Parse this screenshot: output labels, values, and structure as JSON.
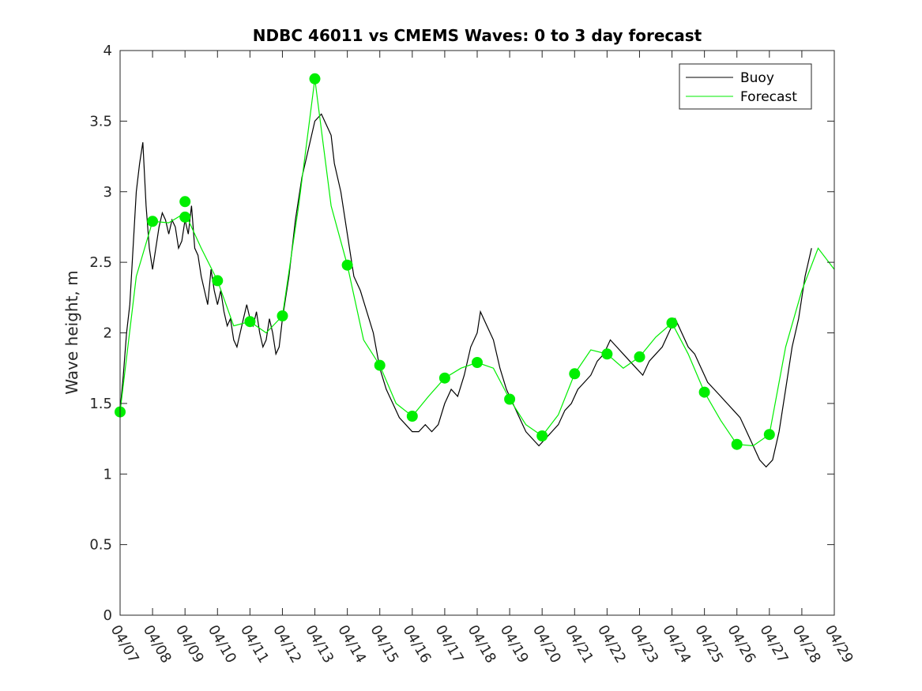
{
  "chart_data": {
    "type": "line",
    "title": "NDBC 46011 vs CMEMS Waves: 0 to 3 day forecast",
    "xlabel": "",
    "ylabel": "Wave height, m",
    "ylim": [
      0,
      4
    ],
    "yticks": [
      "0",
      "0.5",
      "1",
      "1.5",
      "2",
      "2.5",
      "3",
      "3.5",
      "4"
    ],
    "xlim": [
      0,
      22
    ],
    "xticks": [
      "04/07",
      "04/08",
      "04/09",
      "04/10",
      "04/11",
      "04/12",
      "04/13",
      "04/14",
      "04/15",
      "04/16",
      "04/17",
      "04/18",
      "04/19",
      "04/20",
      "04/21",
      "04/22",
      "04/23",
      "04/24",
      "04/25",
      "04/26",
      "04/27",
      "04/28",
      "04/29"
    ],
    "grid": false,
    "legend_position": "top-right",
    "colors": {
      "buoy": "#000000",
      "forecast": "#00ee00"
    },
    "series": [
      {
        "name": "Buoy",
        "x": [
          0,
          0.1,
          0.2,
          0.3,
          0.4,
          0.5,
          0.6,
          0.7,
          0.8,
          0.9,
          1.0,
          1.1,
          1.2,
          1.3,
          1.4,
          1.5,
          1.6,
          1.7,
          1.8,
          1.9,
          2.0,
          2.1,
          2.2,
          2.3,
          2.4,
          2.5,
          2.6,
          2.7,
          2.8,
          2.9,
          3.0,
          3.1,
          3.2,
          3.3,
          3.4,
          3.5,
          3.6,
          3.7,
          3.8,
          3.9,
          4.0,
          4.1,
          4.2,
          4.3,
          4.4,
          4.5,
          4.6,
          4.7,
          4.8,
          4.9,
          5.0,
          5.2,
          5.4,
          5.6,
          5.8,
          6.0,
          6.2,
          6.4,
          6.5,
          6.6,
          6.8,
          7.0,
          7.2,
          7.4,
          7.6,
          7.8,
          8.0,
          8.2,
          8.4,
          8.6,
          8.8,
          9.0,
          9.2,
          9.4,
          9.6,
          9.8,
          10.0,
          10.2,
          10.4,
          10.6,
          10.8,
          11.0,
          11.1,
          11.3,
          11.5,
          11.7,
          11.9,
          12.1,
          12.3,
          12.5,
          12.7,
          12.9,
          13.1,
          13.3,
          13.5,
          13.7,
          13.9,
          14.1,
          14.3,
          14.5,
          14.7,
          14.9,
          15.1,
          15.3,
          15.5,
          15.7,
          15.9,
          16.1,
          16.3,
          16.5,
          16.7,
          16.9,
          17.1,
          17.3,
          17.5,
          17.7,
          17.9,
          18.1,
          18.3,
          18.5,
          18.7,
          18.9,
          19.1,
          19.3,
          19.5,
          19.7,
          19.9,
          20.1,
          20.3,
          20.5,
          20.7,
          20.9,
          21.1,
          21.3
        ],
        "y": [
          1.45,
          1.7,
          2.0,
          2.2,
          2.6,
          3.0,
          3.2,
          3.35,
          2.9,
          2.6,
          2.45,
          2.6,
          2.75,
          2.85,
          2.8,
          2.7,
          2.8,
          2.75,
          2.6,
          2.65,
          2.8,
          2.7,
          2.9,
          2.6,
          2.55,
          2.4,
          2.3,
          2.2,
          2.45,
          2.3,
          2.2,
          2.3,
          2.15,
          2.05,
          2.1,
          1.95,
          1.9,
          2.0,
          2.1,
          2.2,
          2.1,
          2.05,
          2.15,
          2.0,
          1.9,
          1.95,
          2.1,
          2.0,
          1.85,
          1.9,
          2.1,
          2.4,
          2.8,
          3.1,
          3.3,
          3.5,
          3.55,
          3.45,
          3.4,
          3.2,
          3.0,
          2.7,
          2.4,
          2.3,
          2.15,
          2.0,
          1.75,
          1.6,
          1.5,
          1.4,
          1.35,
          1.3,
          1.3,
          1.35,
          1.3,
          1.35,
          1.5,
          1.6,
          1.55,
          1.7,
          1.9,
          2.0,
          2.15,
          2.05,
          1.95,
          1.75,
          1.6,
          1.5,
          1.4,
          1.3,
          1.25,
          1.2,
          1.25,
          1.3,
          1.35,
          1.45,
          1.5,
          1.6,
          1.65,
          1.7,
          1.8,
          1.85,
          1.95,
          1.9,
          1.85,
          1.8,
          1.75,
          1.7,
          1.8,
          1.85,
          1.9,
          2.0,
          2.1,
          2.0,
          1.9,
          1.85,
          1.75,
          1.65,
          1.6,
          1.55,
          1.5,
          1.45,
          1.4,
          1.3,
          1.2,
          1.1,
          1.05,
          1.1,
          1.3,
          1.6,
          1.9,
          2.1,
          2.4,
          2.6
        ]
      },
      {
        "name": "Forecast",
        "x": [
          0,
          0.5,
          1.0,
          1.5,
          2.0,
          2.5,
          3.0,
          3.5,
          4.0,
          4.5,
          5.0,
          5.5,
          6.0,
          6.5,
          7.0,
          7.5,
          8.0,
          8.5,
          9.0,
          9.5,
          10.0,
          10.5,
          11.0,
          11.5,
          12.0,
          12.5,
          13.0,
          13.5,
          14.0,
          14.5,
          15.0,
          15.5,
          16.0,
          16.5,
          17.0,
          17.5,
          18.0,
          18.5,
          19.0,
          19.5,
          20.0,
          20.5,
          21.0,
          21.5,
          22.0
        ],
        "y": [
          1.44,
          2.4,
          2.79,
          2.78,
          2.85,
          2.6,
          2.37,
          2.05,
          2.08,
          2.0,
          2.12,
          2.9,
          3.8,
          2.9,
          2.48,
          1.95,
          1.77,
          1.5,
          1.41,
          1.55,
          1.68,
          1.75,
          1.79,
          1.75,
          1.53,
          1.35,
          1.27,
          1.42,
          1.71,
          1.88,
          1.85,
          1.75,
          1.83,
          1.97,
          2.07,
          1.85,
          1.58,
          1.38,
          1.21,
          1.2,
          1.28,
          1.9,
          2.3,
          2.6,
          2.45
        ]
      }
    ],
    "markers": {
      "x": [
        0,
        1,
        2,
        2,
        3,
        4,
        5,
        6,
        7,
        8,
        9,
        10,
        11,
        12,
        13,
        14,
        15,
        16,
        17,
        18,
        19,
        20
      ],
      "y": [
        1.44,
        2.79,
        2.93,
        2.82,
        2.37,
        2.08,
        2.12,
        3.8,
        2.48,
        1.77,
        1.41,
        1.68,
        1.79,
        1.53,
        1.27,
        1.71,
        1.85,
        1.83,
        2.07,
        1.58,
        1.21,
        1.28
      ]
    }
  }
}
